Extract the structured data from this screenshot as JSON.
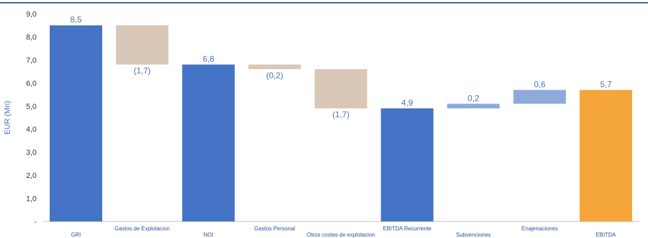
{
  "chart_data": {
    "type": "waterfall",
    "title": "",
    "ylabel": "EUR (Mn)",
    "ylim": [
      0,
      9
    ],
    "yticks": [
      "-",
      "1,0",
      "2,0",
      "3,0",
      "4,0",
      "5,0",
      "6,0",
      "7,0",
      "8,0",
      "9,0"
    ],
    "categories": [
      "GRI",
      "Gastos de Explotacion",
      "NOI",
      "Gastos Personal",
      "Otros costes de explotacion",
      "EBITDA Recurrente",
      "Subvenciones",
      "Enajenaciones",
      "EBITDA"
    ],
    "bars": [
      {
        "category": "GRI",
        "kind": "total",
        "start": 0,
        "end": 8.5,
        "label": "8,5",
        "color": "#4472c4"
      },
      {
        "category": "Gastos de Explotacion",
        "kind": "decrease",
        "start": 6.8,
        "end": 8.5,
        "label": "(1,7)",
        "color": "#d9c7b8"
      },
      {
        "category": "NOI",
        "kind": "total",
        "start": 0,
        "end": 6.8,
        "label": "6,8",
        "color": "#4472c4"
      },
      {
        "category": "Gastos Personal",
        "kind": "decrease",
        "start": 6.6,
        "end": 6.8,
        "label": "(0,2)",
        "color": "#d9c7b8"
      },
      {
        "category": "Otros costes de explotacion",
        "kind": "decrease",
        "start": 4.9,
        "end": 6.6,
        "label": "(1,7)",
        "color": "#d9c7b8"
      },
      {
        "category": "EBITDA Recurrente",
        "kind": "total",
        "start": 0,
        "end": 4.9,
        "label": "4,9",
        "color": "#4472c4"
      },
      {
        "category": "Subvenciones",
        "kind": "increase",
        "start": 4.9,
        "end": 5.1,
        "label": "0,2",
        "color": "#8eaadb"
      },
      {
        "category": "Enajenaciones",
        "kind": "increase",
        "start": 5.1,
        "end": 5.7,
        "label": "0,6",
        "color": "#8eaadb"
      },
      {
        "category": "EBITDA",
        "kind": "total",
        "start": 0,
        "end": 5.7,
        "label": "5,7",
        "color": "#f4a63a"
      }
    ],
    "grid": false,
    "legend": "none"
  }
}
